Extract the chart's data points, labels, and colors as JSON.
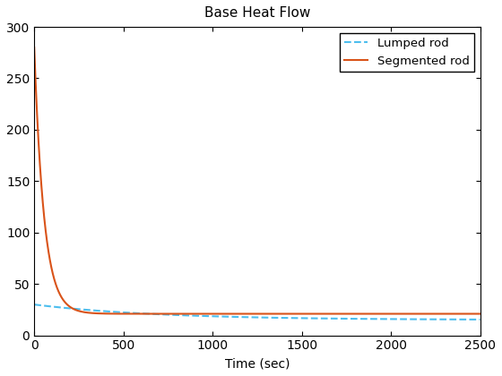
{
  "title": "Base Heat Flow",
  "xlabel": "Time (sec)",
  "ylabel": "",
  "xlim": [
    0,
    2500
  ],
  "ylim": [
    0,
    300
  ],
  "yticks": [
    0,
    50,
    100,
    150,
    200,
    250,
    300
  ],
  "xticks": [
    0,
    500,
    1000,
    1500,
    2000,
    2500
  ],
  "lumped_color": "#4DBEEE",
  "segmented_color": "#D95319",
  "lumped_label": "Lumped rod",
  "segmented_label": "Segmented rod",
  "lumped_linestyle": "--",
  "segmented_linestyle": "-",
  "lumped_linewidth": 1.5,
  "segmented_linewidth": 1.5,
  "background_color": "#FFFFFF",
  "legend_loc": "upper right",
  "title_fontsize": 11,
  "label_fontsize": 10,
  "tick_fontsize": 10,
  "lumped_start": 30,
  "lumped_end": 15,
  "segmented_start": 280,
  "segmented_end": 21,
  "tau_lumped": 700,
  "tau_segmented": 55
}
